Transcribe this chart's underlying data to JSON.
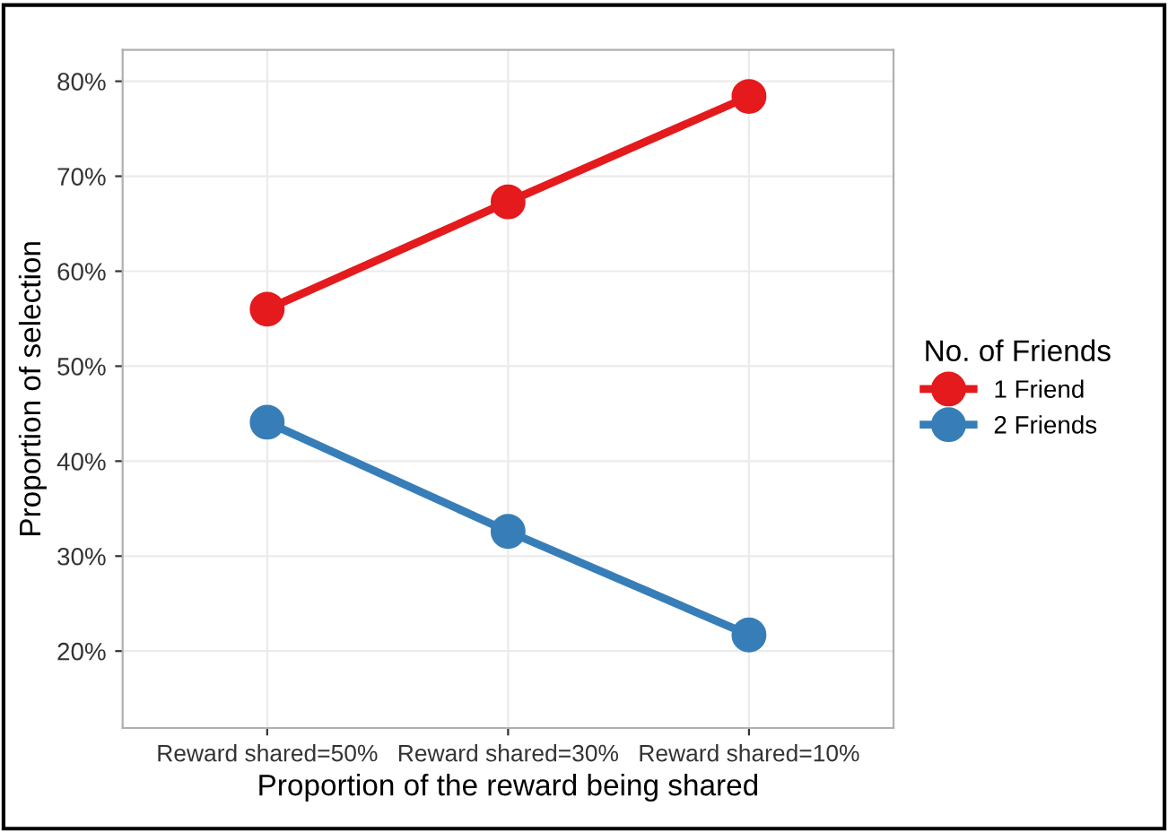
{
  "chart_data": {
    "type": "line",
    "xlabel": "Proportion of the reward being shared",
    "ylabel": "Proportion of selection",
    "legend_title": "No. of Friends",
    "categories": [
      "Reward shared=50%",
      "Reward shared=30%",
      "Reward shared=10%"
    ],
    "series": [
      {
        "name": "1 Friend",
        "color": "#e41a1c",
        "values": [
          56.0,
          67.3,
          78.4
        ]
      },
      {
        "name": "2 Friends",
        "color": "#377eb8",
        "values": [
          44.1,
          32.6,
          21.7
        ]
      }
    ],
    "ylim": [
      11.9,
      83.3
    ],
    "yticks": [
      {
        "value": 20,
        "label": "20%"
      },
      {
        "value": 30,
        "label": "30%"
      },
      {
        "value": 40,
        "label": "40%"
      },
      {
        "value": 50,
        "label": "50%"
      },
      {
        "value": 60,
        "label": "60%"
      },
      {
        "value": 70,
        "label": "70%"
      },
      {
        "value": 80,
        "label": "80%"
      }
    ],
    "grid": true,
    "legend": "right",
    "marker": "circle",
    "line_style": "solid"
  }
}
